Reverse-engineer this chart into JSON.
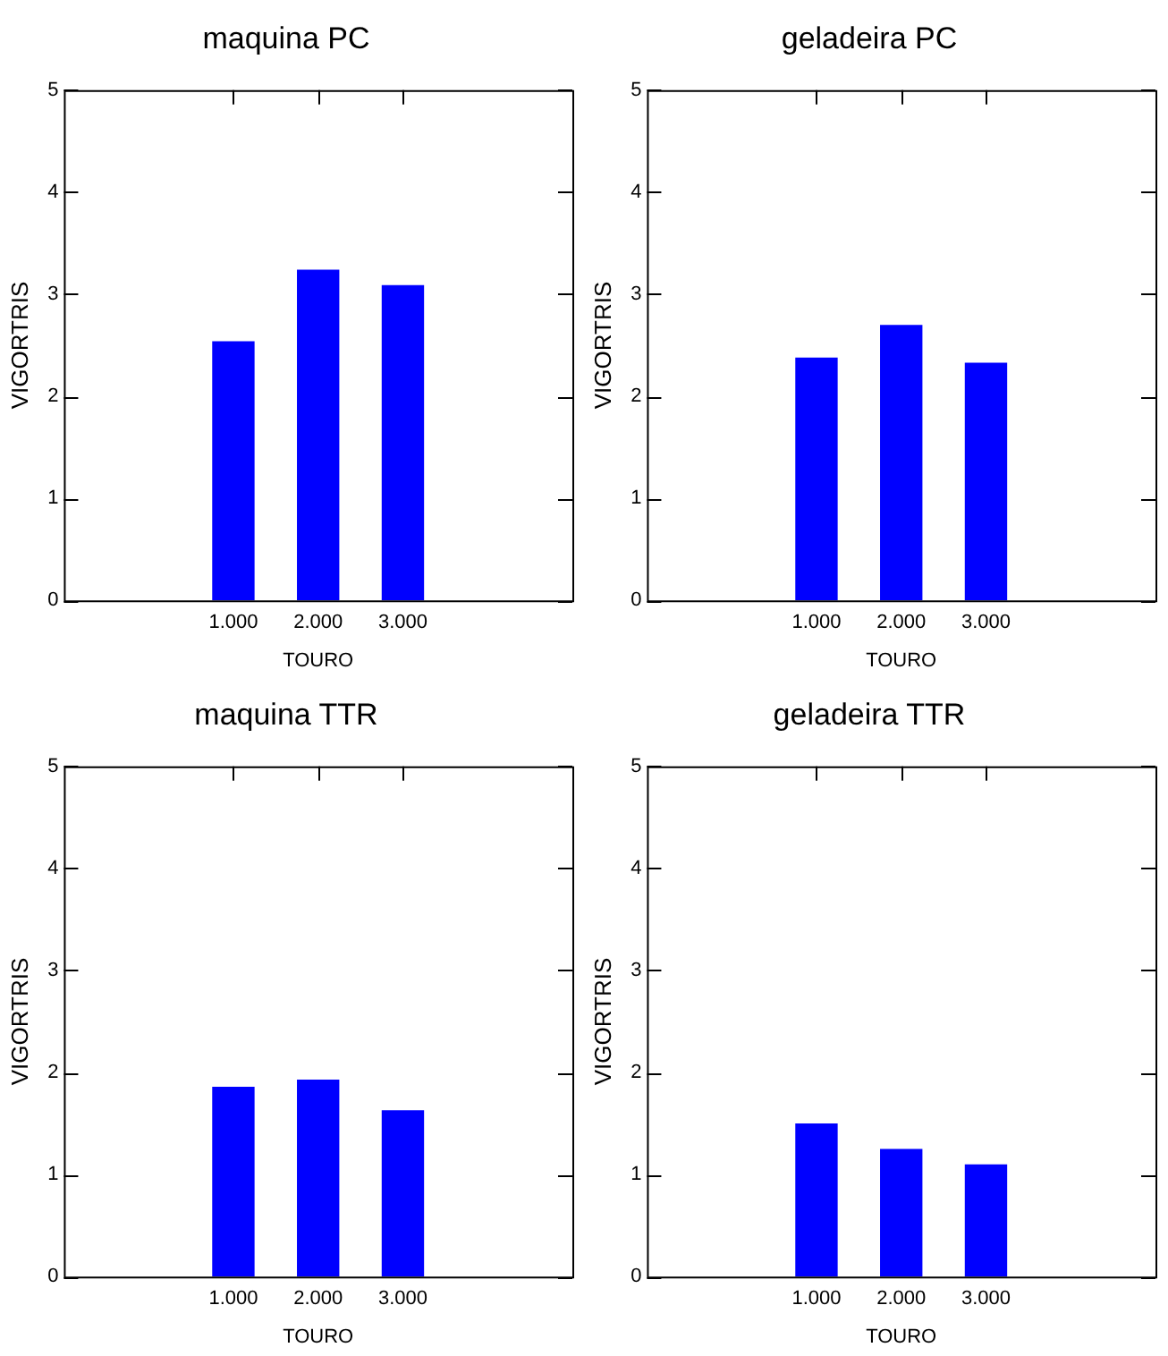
{
  "chart_data": [
    {
      "type": "bar",
      "title": "maquina PC",
      "xlabel": "TOURO",
      "ylabel": "VIGORTRIS",
      "categories": [
        "1.000",
        "2.000",
        "3.000"
      ],
      "values": [
        2.54,
        3.24,
        3.09
      ],
      "color": "#0000ff",
      "ylim": [
        0,
        5
      ],
      "yticks": [
        0,
        1,
        2,
        3,
        4,
        5
      ],
      "grid": false
    },
    {
      "type": "bar",
      "title": "geladeira PC",
      "xlabel": "TOURO",
      "ylabel": "VIGORTRIS",
      "categories": [
        "1.000",
        "2.000",
        "3.000"
      ],
      "values": [
        2.38,
        2.7,
        2.33
      ],
      "color": "#0000ff",
      "ylim": [
        0,
        5
      ],
      "yticks": [
        0,
        1,
        2,
        3,
        4,
        5
      ],
      "grid": false
    },
    {
      "type": "bar",
      "title": "maquina TTR",
      "xlabel": "TOURO",
      "ylabel": "VIGORTRIS",
      "categories": [
        "1.000",
        "2.000",
        "3.000"
      ],
      "values": [
        1.86,
        1.93,
        1.63
      ],
      "color": "#0000ff",
      "ylim": [
        0,
        5
      ],
      "yticks": [
        0,
        1,
        2,
        3,
        4,
        5
      ],
      "grid": false
    },
    {
      "type": "bar",
      "title": "geladeira TTR",
      "xlabel": "TOURO",
      "ylabel": "VIGORTRIS",
      "categories": [
        "1.000",
        "2.000",
        "3.000"
      ],
      "values": [
        1.5,
        1.25,
        1.1
      ],
      "color": "#0000ff",
      "ylim": [
        0,
        5
      ],
      "yticks": [
        0,
        1,
        2,
        3,
        4,
        5
      ],
      "grid": false
    }
  ]
}
